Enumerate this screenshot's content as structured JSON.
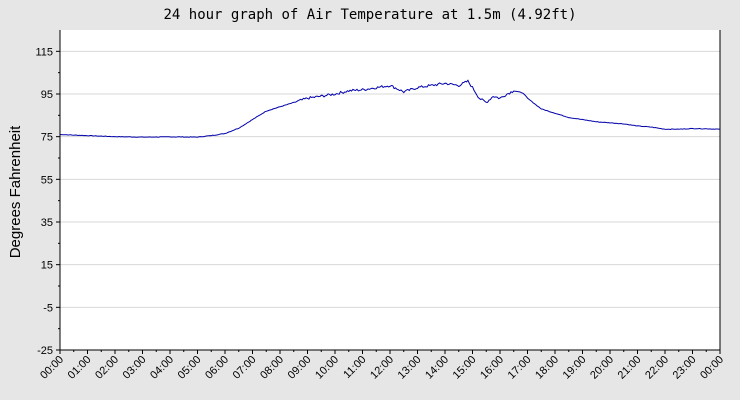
{
  "chart_data": {
    "type": "line",
    "title": "24 hour graph of Air Temperature at 1.5m (4.92ft)",
    "xlabel": "",
    "ylabel": "Degrees Fahrenheit",
    "ylim": [
      -25,
      125
    ],
    "yticks": [
      115,
      95,
      75,
      55,
      35,
      15,
      -5,
      -25
    ],
    "xlim": [
      0,
      24
    ],
    "xtick_labels": [
      "00:00",
      "01:00",
      "02:00",
      "03:00",
      "04:00",
      "05:00",
      "06:00",
      "07:00",
      "08:00",
      "09:00",
      "10:00",
      "11:00",
      "12:00",
      "13:00",
      "14:00",
      "15:00",
      "16:00",
      "17:00",
      "18:00",
      "19:00",
      "20:00",
      "21:00",
      "22:00",
      "23:00",
      "00:00"
    ],
    "grid": true,
    "series": [
      {
        "color": "#0000aa",
        "x": [
          "00:00",
          "01:00",
          "02:00",
          "03:00",
          "04:00",
          "05:00",
          "05:30",
          "06:00",
          "06:30",
          "07:00",
          "07:30",
          "08:00",
          "08:30",
          "09:00",
          "09:30",
          "10:00",
          "10:30",
          "11:00",
          "11:30",
          "12:00",
          "12:30",
          "13:00",
          "13:30",
          "14:00",
          "14:30",
          "14:50",
          "15:00",
          "15:15",
          "15:30",
          "15:45",
          "16:00",
          "16:15",
          "16:30",
          "16:50",
          "17:00",
          "17:30",
          "18:00",
          "18:30",
          "19:00",
          "19:30",
          "20:00",
          "20:30",
          "21:00",
          "21:30",
          "22:00",
          "22:30",
          "23:00",
          "23:30",
          "24:00"
        ],
        "values": [
          76,
          75.5,
          75,
          74.8,
          74.9,
          74.8,
          75.5,
          76.5,
          79,
          83,
          87,
          89,
          91,
          93,
          94,
          95,
          96.5,
          97,
          98,
          99,
          96,
          98,
          99,
          100,
          99,
          101,
          98,
          93,
          91,
          94,
          93,
          95,
          96.5,
          95.5,
          93,
          88,
          86,
          84,
          83,
          82,
          81.5,
          81,
          80,
          79.5,
          78.5,
          78.5,
          78.8,
          78.7,
          78.5
        ]
      }
    ]
  }
}
